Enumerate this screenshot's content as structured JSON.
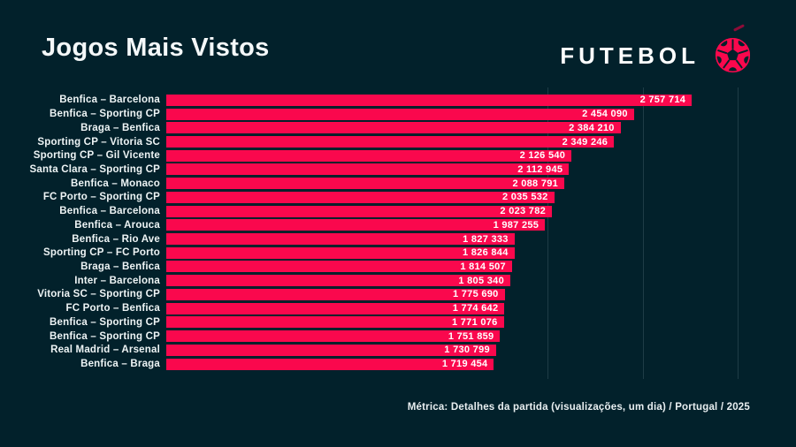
{
  "header": {
    "title": "Jogos Mais Vistos",
    "logo_text": "FUTEBOL"
  },
  "footer": {
    "note": "Métrica: Detalhes da partida (visualizações, um dia) / Portugal / 2025"
  },
  "colors": {
    "background": "#02212b",
    "bar": "#fa084d",
    "accent": "#fa084d",
    "text": "#ffffff",
    "gridline": "#1e3c46"
  },
  "icons": {
    "logo_ball": "soccer-ball-icon"
  },
  "chart_data": {
    "type": "bar",
    "orientation": "horizontal",
    "title": "Jogos Mais Vistos",
    "xlabel": "",
    "ylabel": "",
    "legend": "none",
    "grid": "vertical-faint",
    "xlim": [
      0,
      3063000
    ],
    "visible_gridlines": [
      2000000,
      2500000,
      3000000
    ],
    "categories": [
      "Benfica – Barcelona",
      "Benfica – Sporting CP",
      "Braga – Benfica",
      "Sporting CP – Vitoria SC",
      "Sporting CP – Gil Vicente",
      "Santa Clara – Sporting CP",
      "Benfica – Monaco",
      "FC Porto – Sporting CP",
      "Benfica – Barcelona",
      "Benfica – Arouca",
      "Benfica – Rio Ave",
      "Sporting CP – FC Porto",
      "Braga – Benfica",
      "Inter – Barcelona",
      "Vitoria SC – Sporting CP",
      "FC Porto – Benfica",
      "Benfica – Sporting CP",
      "Benfica – Sporting CP",
      "Real Madrid – Arsenal",
      "Benfica – Braga"
    ],
    "values": [
      2757714,
      2454090,
      2384210,
      2349246,
      2126540,
      2112945,
      2088791,
      2035532,
      2023782,
      1987255,
      1827333,
      1826844,
      1814507,
      1805340,
      1775690,
      1774642,
      1771076,
      1751859,
      1730799,
      1719454
    ],
    "display_values": [
      "2 757 714",
      "2 454 090",
      "2 384 210",
      "2 349 246",
      "2 126 540",
      "2 112 945",
      "2 088 791",
      "2 035 532",
      "2 023 782",
      "1 987 255",
      "1 827 333",
      "1 826 844",
      "1 814 507",
      "1 805 340",
      "1 775 690",
      "1 774 642",
      "1 771 076",
      "1 751 859",
      "1 730 799",
      "1 719 454"
    ]
  }
}
